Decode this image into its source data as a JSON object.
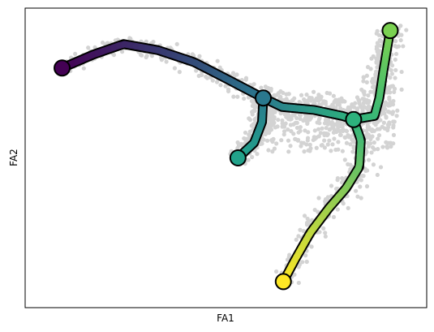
{
  "chart_data": {
    "type": "scatter",
    "xlabel": "FA1",
    "ylabel": "FA2",
    "xticks": [],
    "yticks": [],
    "grid": false,
    "legend": "none",
    "point_color": "#d3d3d3",
    "colormap": [
      "#440154",
      "#482878",
      "#3e4a89",
      "#31688e",
      "#26828e",
      "#1f9e89",
      "#35b779",
      "#6ece58",
      "#b5de2b",
      "#fde725"
    ],
    "nodes": [
      {
        "id": "n0",
        "x": 0.092,
        "y": 0.8,
        "value": 0.0,
        "color": "#440154"
      },
      {
        "id": "n1",
        "x": 0.593,
        "y": 0.7,
        "value": 0.36,
        "color": "#2a788e"
      },
      {
        "id": "n2",
        "x": 0.53,
        "y": 0.5,
        "value": 0.46,
        "color": "#22a28a"
      },
      {
        "id": "n3",
        "x": 0.818,
        "y": 0.628,
        "value": 0.55,
        "color": "#2db27d"
      },
      {
        "id": "n4",
        "x": 0.909,
        "y": 0.925,
        "value": 0.8,
        "color": "#7ad151"
      },
      {
        "id": "n5",
        "x": 0.643,
        "y": 0.087,
        "value": 1.0,
        "color": "#fde725"
      }
    ],
    "edges": [
      {
        "from": "n0",
        "to": "n1",
        "waypoints": [
          [
            0.092,
            0.8
          ],
          [
            0.17,
            0.845
          ],
          [
            0.245,
            0.88
          ],
          [
            0.33,
            0.86
          ],
          [
            0.42,
            0.82
          ],
          [
            0.5,
            0.765
          ],
          [
            0.593,
            0.7
          ]
        ]
      },
      {
        "from": "n1",
        "to": "n2",
        "waypoints": [
          [
            0.593,
            0.7
          ],
          [
            0.59,
            0.62
          ],
          [
            0.57,
            0.55
          ],
          [
            0.53,
            0.5
          ]
        ]
      },
      {
        "from": "n1",
        "to": "n3",
        "waypoints": [
          [
            0.593,
            0.7
          ],
          [
            0.64,
            0.67
          ],
          [
            0.72,
            0.66
          ],
          [
            0.79,
            0.64
          ],
          [
            0.818,
            0.628
          ]
        ]
      },
      {
        "from": "n3",
        "to": "n4",
        "waypoints": [
          [
            0.818,
            0.628
          ],
          [
            0.87,
            0.64
          ],
          [
            0.882,
            0.7
          ],
          [
            0.892,
            0.79
          ],
          [
            0.902,
            0.87
          ],
          [
            0.909,
            0.925
          ]
        ]
      },
      {
        "from": "n3",
        "to": "n5",
        "waypoints": [
          [
            0.818,
            0.628
          ],
          [
            0.836,
            0.56
          ],
          [
            0.832,
            0.47
          ],
          [
            0.8,
            0.4
          ],
          [
            0.755,
            0.33
          ],
          [
            0.71,
            0.25
          ],
          [
            0.672,
            0.16
          ],
          [
            0.643,
            0.087
          ]
        ]
      }
    ]
  }
}
